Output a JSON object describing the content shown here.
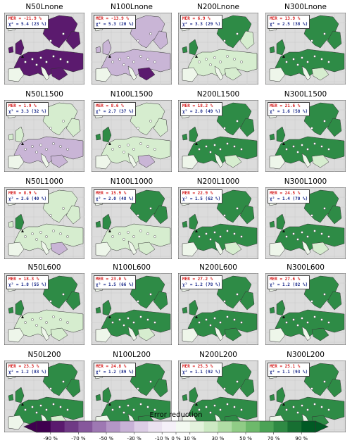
{
  "panels": [
    {
      "title": "N50Lnone",
      "mer": "MER = -21.9 %",
      "chi": "χ² = 5.4 (23 %)",
      "level": -0.45
    },
    {
      "title": "N100Lnone",
      "mer": "MER = -13.9 %",
      "chi": "χ² = 5.3 (20 %)",
      "level": -0.2
    },
    {
      "title": "N200Lnone",
      "mer": "MER = 6.9 %",
      "chi": "χ² = 3.3 (29 %)",
      "level": 0.15
    },
    {
      "title": "N300Lnone",
      "mer": "MER = 13.9 %",
      "chi": "χ² = 2.5 (38 %)",
      "level": 0.25
    },
    {
      "title": "N50L1500",
      "mer": "MER = 1.9 %",
      "chi": "χ² = 3.3 (32 %)",
      "level": 0.0
    },
    {
      "title": "N100L1500",
      "mer": "MER = 8.6 %",
      "chi": "χ² = 2.7 (37 %)",
      "level": 0.12
    },
    {
      "title": "N200L1500",
      "mer": "MER = 18.2 %",
      "chi": "χ² = 2.0 (49 %)",
      "level": 0.25
    },
    {
      "title": "N300L1500",
      "mer": "MER = 21.6 %",
      "chi": "χ² = 1.6 (58 %)",
      "level": 0.3
    },
    {
      "title": "N50L1000",
      "mer": "MER = 8.9 %",
      "chi": "χ² = 2.6 (40 %)",
      "level": 0.08
    },
    {
      "title": "N100L1000",
      "mer": "MER = 15.9 %",
      "chi": "χ² = 2.0 (48 %)",
      "level": 0.22
    },
    {
      "title": "N200L1000",
      "mer": "MER = 22.9 %",
      "chi": "χ² = 1.5 (62 %)",
      "level": 0.3
    },
    {
      "title": "N300L1000",
      "mer": "MER = 24.5 %",
      "chi": "χ² = 1.4 (70 %)",
      "level": 0.33
    },
    {
      "title": "N50L600",
      "mer": "MER = 18.3 %",
      "chi": "χ² = 1.8 (55 %)",
      "level": 0.2
    },
    {
      "title": "N100L600",
      "mer": "MER = 23.0 %",
      "chi": "χ² = 1.5 (66 %)",
      "level": 0.3
    },
    {
      "title": "N200L600",
      "mer": "MER = 27.2 %",
      "chi": "χ² = 1.2 (78 %)",
      "level": 0.38
    },
    {
      "title": "N300L600",
      "mer": "MER = 27.6 %",
      "chi": "χ² = 1.2 (82 %)",
      "level": 0.4
    },
    {
      "title": "N50L200",
      "mer": "MER = 23.3 %",
      "chi": "χ² = 1.2 (83 %)",
      "level": 0.33
    },
    {
      "title": "N100L200",
      "mer": "MER = 24.8 %",
      "chi": "χ² = 1.2 (89 %)",
      "level": 0.36
    },
    {
      "title": "N200L200",
      "mer": "MER = 25.3 %",
      "chi": "χ² = 1.1 (92 %)",
      "level": 0.38
    },
    {
      "title": "N300L200",
      "mer": "MER = 25.1 %",
      "chi": "χ² = 1.1 (93 %)",
      "level": 0.38
    }
  ],
  "colorbar": {
    "title": "Error reduction",
    "tick_labels": [
      "-90 %",
      "-70 %",
      "-50 %",
      "-30 %",
      "-10 %",
      "0 %",
      "10 %",
      "30 %",
      "50 %",
      "70 %",
      "90 %"
    ],
    "tick_values": [
      -90,
      -70,
      -50,
      -30,
      -10,
      0,
      10,
      30,
      50,
      70,
      90
    ],
    "range": [
      -100,
      100
    ],
    "colors": [
      "#3f004f",
      "#5a1a6e",
      "#6f3a85",
      "#86579c",
      "#9e78b3",
      "#b496c6",
      "#c8b2d6",
      "#dccde5",
      "#ebe2f0",
      "#f5f0f8",
      "#f3f9f1",
      "#e3f2dc",
      "#cce9c3",
      "#b0dca5",
      "#90cc86",
      "#6db96b",
      "#4ba356",
      "#2f8a44",
      "#176f32",
      "#005a24"
    ]
  },
  "map_colors": {
    "ocean": "#dcdcdc",
    "purple_dark": "#5b1a6e",
    "purple_light": "#c9b5d6",
    "green_light": "#d6edcf",
    "green_dark": "#2e8b46"
  }
}
